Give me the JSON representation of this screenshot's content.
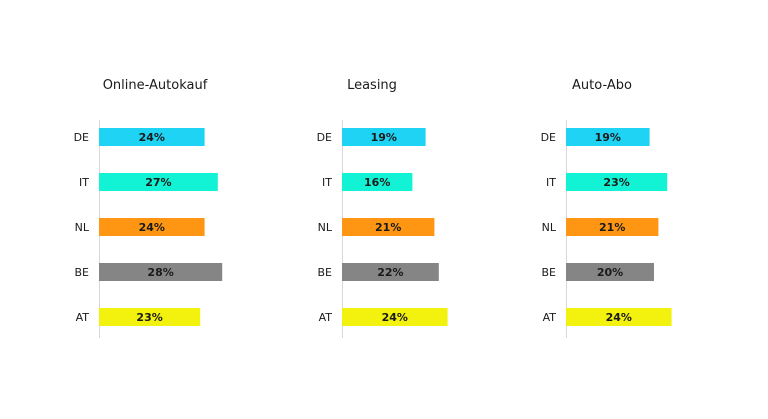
{
  "chart_data": [
    {
      "type": "bar",
      "orientation": "horizontal",
      "title": "Online-Autokauf",
      "categories": [
        "DE",
        "IT",
        "NL",
        "BE",
        "AT"
      ],
      "values": [
        24,
        27,
        24,
        28,
        23
      ],
      "value_labels": [
        "24%",
        "27%",
        "24%",
        "28%",
        "23%"
      ],
      "xlim": [
        0,
        28
      ]
    },
    {
      "type": "bar",
      "orientation": "horizontal",
      "title": "Leasing",
      "categories": [
        "DE",
        "IT",
        "NL",
        "BE",
        "AT"
      ],
      "values": [
        19,
        16,
        21,
        22,
        24
      ],
      "value_labels": [
        "19%",
        "16%",
        "21%",
        "22%",
        "24%"
      ],
      "xlim": [
        0,
        28
      ]
    },
    {
      "type": "bar",
      "orientation": "horizontal",
      "title": "Auto-Abo",
      "categories": [
        "DE",
        "IT",
        "NL",
        "BE",
        "AT"
      ],
      "values": [
        19,
        23,
        21,
        20,
        24
      ],
      "value_labels": [
        "19%",
        "23%",
        "21%",
        "20%",
        "24%"
      ],
      "xlim": [
        0,
        28
      ]
    }
  ],
  "category_colors": {
    "DE": "#1fd3f5",
    "IT": "#12f2d4",
    "NL": "#ff9613",
    "BE": "#858585",
    "AT": "#f3f20e"
  },
  "grid": false,
  "legend": "none"
}
